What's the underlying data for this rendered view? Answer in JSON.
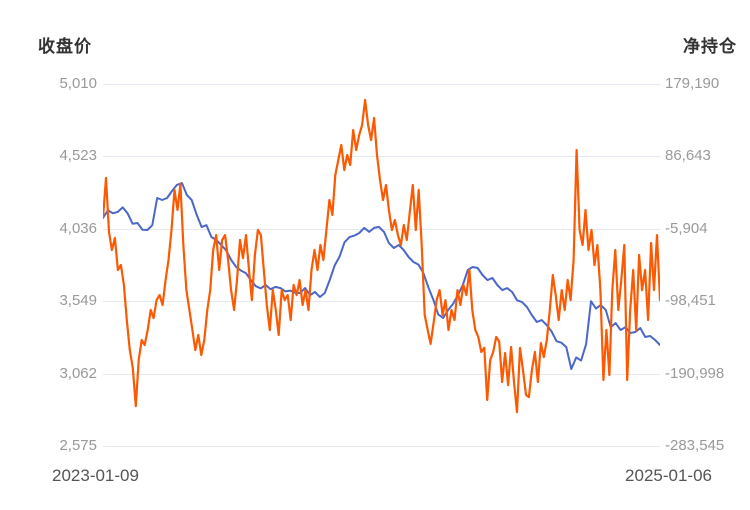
{
  "header": {
    "left_axis_title": "收盘价",
    "right_axis_title": "净持仓"
  },
  "x_axis": {
    "start_label": "2023-01-09",
    "end_label": "2025-01-06"
  },
  "left_axis_tick_labels": [
    "5,010",
    "4,523",
    "4,036",
    "3,549",
    "3,062",
    "2,575"
  ],
  "right_axis_tick_labels": [
    "179,190",
    "86,643",
    "-5,904",
    "-98,451",
    "-190,998",
    "-283,545"
  ],
  "colors": {
    "close_line": "#4b67c8",
    "position_line": "#fb5902",
    "grid": "#e4e8f1",
    "tick_text": "#999999",
    "title_text": "#333333",
    "date_text": "#555555",
    "background": "#ffffff"
  },
  "chart_data": {
    "type": "line",
    "title": "",
    "x_range": [
      "2023-01-09",
      "2025-01-06"
    ],
    "x_interval": "weekly",
    "grid": true,
    "legend_position": "none",
    "left_axis": {
      "title": "收盘价",
      "min": 2575,
      "max": 5010,
      "ticks": [
        5010,
        4523,
        4036,
        3549,
        3062,
        2575
      ]
    },
    "right_axis": {
      "title": "净持仓",
      "min": -283545,
      "max": 179190,
      "ticks": [
        179190,
        86643,
        -5904,
        -98451,
        -190998,
        -283545
      ]
    },
    "series": [
      {
        "name": "收盘价",
        "axis": "left",
        "color": "#4b67c8",
        "values": [
          4110,
          4160,
          4140,
          4150,
          4180,
          4140,
          4070,
          4075,
          4030,
          4028,
          4060,
          4243,
          4230,
          4243,
          4290,
          4331,
          4344,
          4264,
          4230,
          4130,
          4048,
          4060,
          3981,
          3960,
          3927,
          3890,
          3826,
          3780,
          3755,
          3738,
          3690,
          3650,
          3635,
          3658,
          3630,
          3645,
          3637,
          3615,
          3620,
          3605,
          3604,
          3637,
          3590,
          3611,
          3577,
          3604,
          3691,
          3790,
          3850,
          3945,
          3980,
          3990,
          4008,
          4042,
          4015,
          4042,
          4049,
          4015,
          3940,
          3907,
          3927,
          3893,
          3846,
          3813,
          3795,
          3738,
          3644,
          3560,
          3460,
          3436,
          3489,
          3530,
          3590,
          3658,
          3759,
          3779,
          3772,
          3725,
          3691,
          3705,
          3658,
          3624,
          3637,
          3611,
          3555,
          3543,
          3510,
          3456,
          3409,
          3422,
          3389,
          3345,
          3280,
          3270,
          3240,
          3093,
          3170,
          3150,
          3260,
          3549,
          3500,
          3523,
          3490,
          3375,
          3402,
          3355,
          3375,
          3335,
          3342,
          3369,
          3308,
          3315,
          3288,
          3254
        ]
      },
      {
        "name": "净持仓",
        "axis": "right",
        "color": "#fb5902",
        "values": [
          8000,
          59000,
          -10000,
          -33000,
          -17700,
          -58600,
          -52200,
          -77800,
          -122500,
          -160900,
          -183900,
          -232500,
          -173600,
          -148100,
          -154500,
          -135300,
          -109700,
          -120000,
          -96900,
          -90600,
          -103300,
          -71400,
          -45800,
          -7500,
          43700,
          18100,
          51400,
          -27900,
          -84200,
          -109700,
          -135300,
          -160900,
          -141700,
          -167200,
          -148100,
          -109700,
          -84200,
          -33000,
          -13900,
          -58600,
          -20200,
          -13900,
          -45800,
          -84200,
          -109700,
          -71400,
          -20200,
          -43300,
          -13900,
          -58600,
          -97000,
          -39400,
          -7500,
          -13900,
          -58600,
          -103300,
          -135300,
          -84200,
          -109700,
          -141700,
          -84200,
          -97000,
          -90600,
          -122500,
          -77800,
          -90600,
          -71400,
          -103300,
          -84200,
          -109700,
          -58600,
          -33000,
          -58600,
          -26600,
          -45800,
          -7500,
          30900,
          11800,
          62900,
          82100,
          101200,
          69300,
          88400,
          75700,
          120400,
          94800,
          114000,
          126800,
          158700,
          126800,
          107600,
          135700,
          88400,
          56500,
          30900,
          50100,
          18100,
          -7500,
          5300,
          -13900,
          -26600,
          -1100,
          -20200,
          15600,
          50100,
          -7500,
          43700,
          -26600,
          -116100,
          -135300,
          -153000,
          -126300,
          -97000,
          -84200,
          -116100,
          -97000,
          -135300,
          -109700,
          -122500,
          -84200,
          -103300,
          -77800,
          -90600,
          -58600,
          -109700,
          -135300,
          -144200,
          -163400,
          -158000,
          -224800,
          -173700,
          -163400,
          -144200,
          -150000,
          -201700,
          -164700,
          -205700,
          -157000,
          -201700,
          -240200,
          -158300,
          -186500,
          -218400,
          -221000,
          -186500,
          -163400,
          -201700,
          -152000,
          -169900,
          -148100,
          -109700,
          -65000,
          -90600,
          -122500,
          -84200,
          -109700,
          -71400,
          -97000,
          -45800,
          94800,
          -7500,
          -26600,
          18100,
          -33000,
          -7500,
          -52200,
          -26600,
          -84200,
          -199200,
          -135300,
          -192900,
          -84200,
          -33000,
          -109700,
          -71400,
          -26600,
          -199200,
          -109700,
          -58600,
          -135300,
          -39400,
          -84200,
          -58600,
          -122500,
          -24000,
          -84200,
          -13900,
          -97000
        ]
      }
    ]
  }
}
